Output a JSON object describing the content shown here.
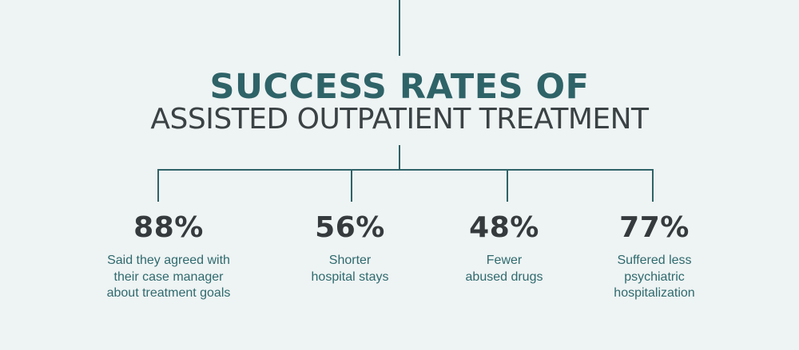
{
  "title": {
    "line1": "SUCCESS RATES OF",
    "line2": "ASSISTED OUTPATIENT TREATMENT"
  },
  "colors": {
    "background": "#eef3f3",
    "accent": "#2e6368",
    "heading_dark": "#3b4244",
    "value": "#353b3d",
    "label": "#2f6a6e"
  },
  "stats": [
    {
      "value": "88%",
      "label": "Said they agreed with\ntheir case manager\nabout treatment goals"
    },
    {
      "value": "56%",
      "label": "Shorter\nhospital stays"
    },
    {
      "value": "48%",
      "label": "Fewer\nabused drugs"
    },
    {
      "value": "77%",
      "label": "Suffered less\npsychiatric\nhospitalization"
    }
  ]
}
